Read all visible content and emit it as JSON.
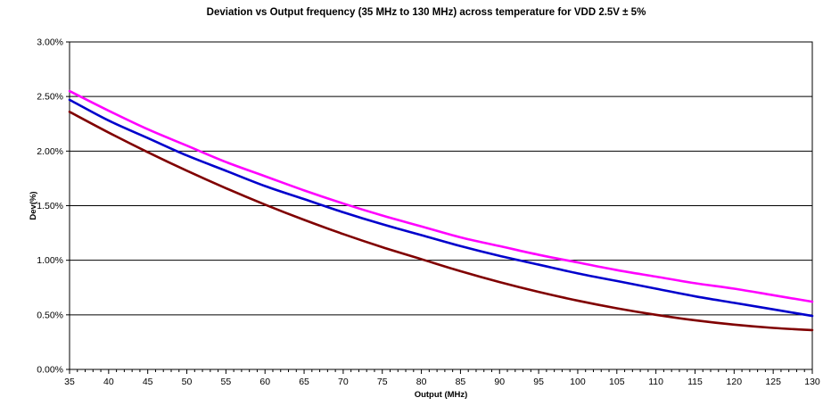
{
  "chart_data": {
    "type": "line",
    "title": "Deviation vs Output frequency (35 MHz to 130 MHz) across temperature for VDD 2.5V ± 5%",
    "xlabel": "Output (MHz)",
    "ylabel": "Dev(%)",
    "xlim": [
      35,
      130
    ],
    "ylim": [
      0,
      3
    ],
    "x_ticks": [
      35,
      40,
      45,
      50,
      55,
      60,
      65,
      70,
      75,
      80,
      85,
      90,
      95,
      100,
      105,
      110,
      115,
      120,
      125,
      130
    ],
    "x_tick_labels": [
      "35",
      "40",
      "45",
      "50",
      "55",
      "60",
      "65",
      "70",
      "75",
      "80",
      "85",
      "90",
      "95",
      "100",
      "105",
      "110",
      "115",
      "120",
      "125",
      "130"
    ],
    "y_ticks": [
      0,
      0.5,
      1,
      1.5,
      2,
      2.5,
      3
    ],
    "y_tick_labels": [
      "0.00%",
      "0.50%",
      "1.00%",
      "1.50%",
      "2.00%",
      "2.50%",
      "3.00%"
    ],
    "grid": true,
    "legend": "none",
    "x": [
      35,
      40,
      45,
      50,
      55,
      60,
      65,
      70,
      75,
      80,
      85,
      90,
      95,
      100,
      105,
      110,
      115,
      120,
      125,
      130
    ],
    "series": [
      {
        "color": "#ff00ff",
        "values": [
          2.55,
          2.37,
          2.2,
          2.05,
          1.9,
          1.77,
          1.64,
          1.52,
          1.41,
          1.31,
          1.21,
          1.13,
          1.05,
          0.98,
          0.91,
          0.85,
          0.79,
          0.74,
          0.68,
          0.62
        ]
      },
      {
        "color": "#0000cc",
        "values": [
          2.47,
          2.28,
          2.12,
          1.96,
          1.82,
          1.68,
          1.56,
          1.44,
          1.33,
          1.23,
          1.13,
          1.04,
          0.96,
          0.88,
          0.81,
          0.74,
          0.67,
          0.61,
          0.55,
          0.49
        ]
      },
      {
        "color": "#800000",
        "values": [
          2.36,
          2.17,
          1.99,
          1.82,
          1.66,
          1.51,
          1.37,
          1.24,
          1.12,
          1.01,
          0.9,
          0.8,
          0.71,
          0.63,
          0.56,
          0.5,
          0.45,
          0.41,
          0.38,
          0.36
        ]
      }
    ]
  }
}
